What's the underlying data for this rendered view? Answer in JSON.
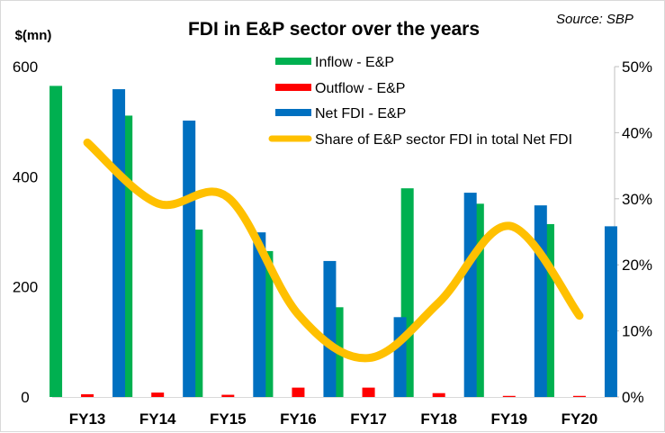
{
  "chart_data": {
    "type": "bar",
    "title": "FDI in  E&P sector over the years",
    "source": "Source: SBP",
    "ylabel": "$(mn)",
    "y2label": "",
    "xlabel": "",
    "categories": [
      "FY13",
      "FY14",
      "FY15",
      "FY16",
      "FY17",
      "FY18",
      "FY19",
      "FY20"
    ],
    "ylim": [
      0,
      600
    ],
    "yticks": [
      0,
      200,
      400,
      600
    ],
    "ytick_labels": [
      "0",
      "200",
      "400",
      "600"
    ],
    "y2lim": [
      0,
      50
    ],
    "y2ticks": [
      0,
      10,
      20,
      30,
      40,
      50
    ],
    "y2tick_labels": [
      "0%",
      "10%",
      "20%",
      "30%",
      "40%",
      "50%"
    ],
    "grid": false,
    "legend_position": "top-center",
    "series": [
      {
        "name": "Inflow - E&P",
        "type": "bar",
        "axis": "left",
        "color": "#00b050",
        "values": [
          565,
          511,
          304,
          265,
          163,
          379,
          351,
          314
        ]
      },
      {
        "name": "Outflow - E&P",
        "type": "bar",
        "axis": "left",
        "color": "#ff0000",
        "values": [
          5,
          8,
          4,
          17,
          17,
          7,
          2,
          2
        ]
      },
      {
        "name": "Net FDI - E&P",
        "type": "bar",
        "axis": "left",
        "color": "#0070c0",
        "values": [
          559,
          502,
          299,
          247,
          145,
          371,
          348,
          310
        ]
      },
      {
        "name": "Share of E&P sector FDI in total Net FDI",
        "type": "line",
        "axis": "right",
        "color": "#ffc000",
        "smooth": true,
        "values": [
          38.5,
          29.3,
          30.2,
          12.5,
          5.9,
          14.3,
          25.9,
          12.3
        ]
      }
    ]
  }
}
